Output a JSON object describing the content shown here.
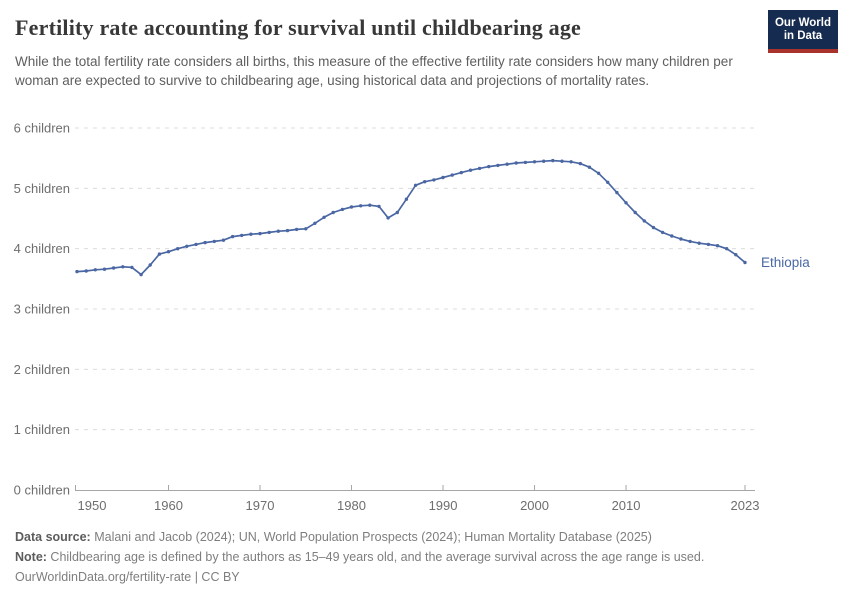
{
  "header": {
    "title": "Fertility rate accounting for survival until childbearing age",
    "subtitle": "While the total fertility rate considers all births, this measure of the effective fertility rate considers how many children per woman are expected to survive to childbearing age, using historical data and projections of mortality rates.",
    "logo": {
      "line1": "Our World",
      "line2": "in Data"
    }
  },
  "chart_data": {
    "type": "line",
    "title": "Fertility rate accounting for survival until childbearing age",
    "entity_label": "Ethiopia",
    "years": [
      1950,
      1951,
      1952,
      1953,
      1954,
      1955,
      1956,
      1957,
      1958,
      1959,
      1960,
      1961,
      1962,
      1963,
      1964,
      1965,
      1966,
      1967,
      1968,
      1969,
      1970,
      1971,
      1972,
      1973,
      1974,
      1975,
      1976,
      1977,
      1978,
      1979,
      1980,
      1981,
      1982,
      1983,
      1984,
      1985,
      1986,
      1987,
      1988,
      1989,
      1990,
      1991,
      1992,
      1993,
      1994,
      1995,
      1996,
      1997,
      1998,
      1999,
      2000,
      2001,
      2002,
      2003,
      2004,
      2005,
      2006,
      2007,
      2008,
      2009,
      2010,
      2011,
      2012,
      2013,
      2014,
      2015,
      2016,
      2017,
      2018,
      2019,
      2020,
      2021,
      2022,
      2023
    ],
    "series": [
      {
        "name": "Ethiopia",
        "values": [
          3.62,
          3.63,
          3.65,
          3.66,
          3.68,
          3.7,
          3.69,
          3.57,
          3.73,
          3.91,
          3.95,
          4.0,
          4.04,
          4.07,
          4.1,
          4.12,
          4.14,
          4.2,
          4.22,
          4.24,
          4.25,
          4.27,
          4.29,
          4.3,
          4.32,
          4.33,
          4.42,
          4.52,
          4.6,
          4.65,
          4.69,
          4.71,
          4.72,
          4.7,
          4.51,
          4.6,
          4.82,
          5.05,
          5.11,
          5.14,
          5.18,
          5.22,
          5.26,
          5.3,
          5.33,
          5.36,
          5.38,
          5.4,
          5.42,
          5.43,
          5.44,
          5.45,
          5.46,
          5.45,
          5.44,
          5.41,
          5.35,
          5.25,
          5.1,
          4.93,
          4.76,
          4.6,
          4.46,
          4.35,
          4.27,
          4.21,
          4.16,
          4.12,
          4.09,
          4.07,
          4.05,
          4.0,
          3.9,
          3.77
        ]
      }
    ],
    "xlabel": "",
    "ylabel": "",
    "ylim": [
      0,
      6
    ],
    "ytick_labels": [
      "0 children",
      "1 children",
      "2 children",
      "3 children",
      "4 children",
      "5 children",
      "6 children"
    ],
    "xticks": [
      1950,
      1960,
      1970,
      1980,
      1990,
      2000,
      2010,
      2023
    ],
    "grid": "horizontal-dashed",
    "legend_position": "end-of-line-label",
    "line_color": "#4a67a3"
  },
  "colors": {
    "line": "#4a67a3",
    "gridline": "#dcdcdc",
    "axis": "#a6a6a6",
    "axis_text": "#6e6e6e",
    "title_text": "#383838",
    "subtitle_text": "#5e5e5e",
    "footer_text": "#7e7e7e",
    "logo_bg": "#152b4f",
    "logo_stripe": "#a8332c"
  },
  "footer": {
    "data_source_label": "Data source:",
    "data_source_text": " Malani and Jacob (2024); UN, World Population Prospects (2024); Human Mortality Database (2025)",
    "note_label": "Note:",
    "note_text": " Childbearing age is defined by the authors as 15–49 years old, and the average survival across the age range is used.",
    "link_text": "OurWorldinData.org/fertility-rate",
    "license_text": " | CC BY"
  }
}
